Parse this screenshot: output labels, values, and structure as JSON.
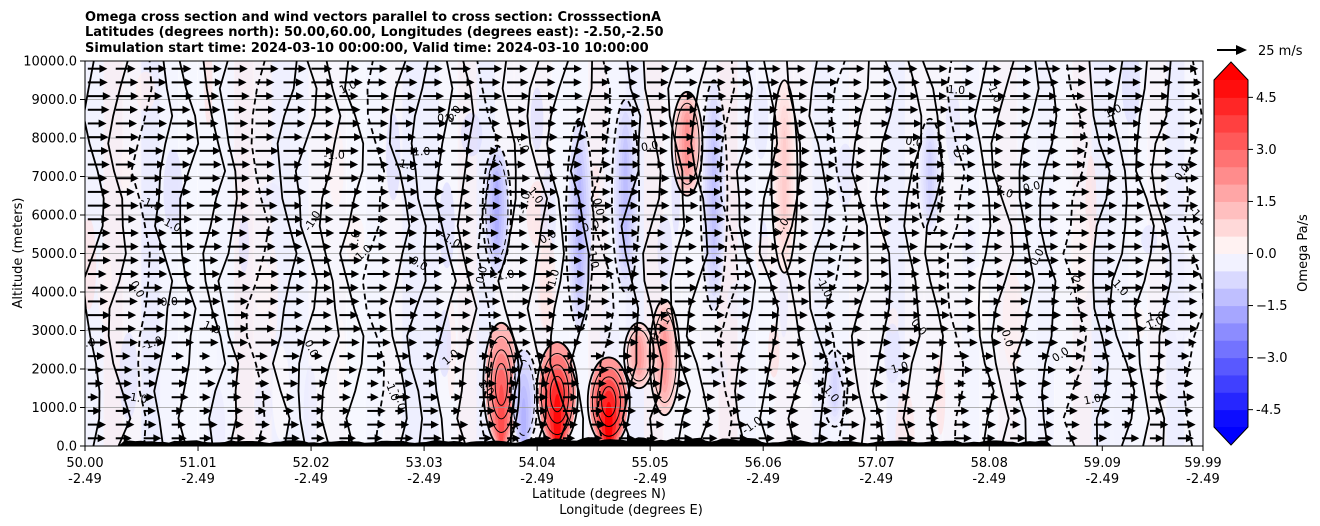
{
  "chart_data": {
    "type": "heatmap",
    "title_lines": [
      "Omega cross section and wind vectors parallel to cross section: CrosssectionA",
      "Latitudes (degrees north): 50.00,60.00, Longitudes (degrees east): -2.50,-2.50",
      "Simulation start time: 2024-03-10 00:00:00, Valid time: 2024-03-10 10:00:00"
    ],
    "ylabel": "Altitude (meters)",
    "xlabel_lat": "Latitude (degrees N)",
    "xlabel_lon": "Longitude (degrees E)",
    "ylim": [
      0,
      10000
    ],
    "xlim": [
      50.0,
      59.99
    ],
    "yticks": [
      "0.0",
      "1000.0",
      "2000.0",
      "3000.0",
      "4000.0",
      "5000.0",
      "6000.0",
      "7000.0",
      "8000.0",
      "9000.0",
      "10000.0"
    ],
    "xticks_lat": [
      "50.00",
      "51.01",
      "52.02",
      "53.03",
      "54.04",
      "55.05",
      "56.06",
      "57.07",
      "58.08",
      "59.09",
      "59.99"
    ],
    "xticks_lon": [
      "-2.49",
      "-2.49",
      "-2.49",
      "-2.49",
      "-2.49",
      "-2.49",
      "-2.49",
      "-2.49",
      "-2.49",
      "-2.49",
      "-2.49"
    ],
    "colorbar": {
      "label": "Omega Pa/s",
      "range": [
        -5.0,
        5.0
      ],
      "ticks": [
        "-4.5",
        "−3.0",
        "−1.5",
        "0.0",
        "1.5",
        "3.0",
        "4.5"
      ],
      "tick_values": [
        -4.5,
        -3.0,
        -1.5,
        0.0,
        1.5,
        3.0,
        4.5
      ],
      "levels": 20,
      "negative_color": "#0000ff",
      "positive_color": "#ff0000"
    },
    "quiver_key": {
      "label": "25 m/s",
      "speed": 25
    },
    "contour_labels": [
      "0.0",
      "1.0",
      "-1.0"
    ],
    "omega_features": [
      {
        "lat": 53.72,
        "alt_lo": 0,
        "alt_hi": 3200,
        "omega": 3.5
      },
      {
        "lat": 54.22,
        "alt_lo": 0,
        "alt_hi": 2700,
        "omega": 4.8
      },
      {
        "lat": 54.68,
        "alt_lo": 0,
        "alt_hi": 2300,
        "omega": 5.0
      },
      {
        "lat": 54.95,
        "alt_lo": 1500,
        "alt_hi": 3200,
        "omega": 2.0
      },
      {
        "lat": 55.38,
        "alt_lo": 6500,
        "alt_hi": 9200,
        "omega": 2.2
      },
      {
        "lat": 55.18,
        "alt_lo": 800,
        "alt_hi": 3800,
        "omega": 2.0
      },
      {
        "lat": 56.25,
        "alt_lo": 4500,
        "alt_hi": 9500,
        "omega": 1.0
      },
      {
        "lat": 53.68,
        "alt_lo": 4500,
        "alt_hi": 7800,
        "omega": -1.6
      },
      {
        "lat": 54.42,
        "alt_lo": 3000,
        "alt_hi": 8500,
        "omega": -1.4
      },
      {
        "lat": 54.83,
        "alt_lo": 4000,
        "alt_hi": 9000,
        "omega": -1.3
      },
      {
        "lat": 55.62,
        "alt_lo": 3500,
        "alt_hi": 9500,
        "omega": -1.2
      },
      {
        "lat": 57.55,
        "alt_lo": 5500,
        "alt_hi": 8500,
        "omega": -0.9
      },
      {
        "lat": 56.7,
        "alt_lo": 500,
        "alt_hi": 2500,
        "omega": -0.8
      },
      {
        "lat": 53.92,
        "alt_lo": 0,
        "alt_hi": 2500,
        "omega": -1.5
      }
    ]
  }
}
